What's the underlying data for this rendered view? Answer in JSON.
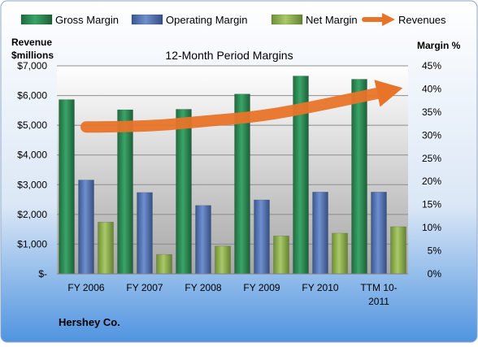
{
  "chart_data": {
    "type": "bar",
    "title": "12-Month Period Margins",
    "company": "Hershey Co.",
    "left_axis_label": [
      "Revenue",
      "$millions"
    ],
    "right_axis_label": "Margin %",
    "categories": [
      "FY 2006",
      "FY 2007",
      "FY 2008",
      "FY 2009",
      "FY 2010",
      "TTM 10-2011"
    ],
    "category_label_lines": [
      [
        "FY 2006"
      ],
      [
        "FY 2007"
      ],
      [
        "FY 2008"
      ],
      [
        "FY 2009"
      ],
      [
        "FY 2010"
      ],
      [
        "TTM 10-",
        "2011"
      ]
    ],
    "left_axis": {
      "min": 0,
      "max": 7000,
      "ticks": [
        0,
        1000,
        2000,
        3000,
        4000,
        5000,
        6000,
        7000
      ],
      "tick_labels": [
        "$-",
        "$1,000",
        "$2,000",
        "$3,000",
        "$4,000",
        "$5,000",
        "$6,000",
        "$7,000"
      ]
    },
    "right_axis": {
      "min": 0,
      "max": 45,
      "ticks": [
        0,
        5,
        10,
        15,
        20,
        25,
        30,
        35,
        40,
        45
      ],
      "tick_labels": [
        "0%",
        "5%",
        "10%",
        "15%",
        "20%",
        "25%",
        "30%",
        "35%",
        "40%",
        "45%"
      ]
    },
    "series": [
      {
        "name": "Gross Margin",
        "kind": "bar",
        "axis": "right",
        "color": "#2e8b57",
        "values": [
          37.7,
          35.5,
          35.6,
          38.9,
          42.8,
          42.1
        ]
      },
      {
        "name": "Operating Margin",
        "kind": "bar",
        "axis": "right",
        "color": "#4f6fae",
        "values": [
          20.3,
          17.6,
          14.8,
          16.0,
          17.7,
          17.7
        ]
      },
      {
        "name": "Net Margin",
        "kind": "bar",
        "axis": "right",
        "color": "#8db04d",
        "values": [
          11.2,
          4.2,
          6.0,
          8.2,
          8.8,
          10.2
        ]
      },
      {
        "name": "Revenues",
        "kind": "line",
        "axis": "left",
        "color": "#e8742a",
        "values": [
          4944,
          4947,
          5133,
          5299,
          5671,
          6086
        ]
      }
    ],
    "legend_position": "top",
    "grid": true
  }
}
